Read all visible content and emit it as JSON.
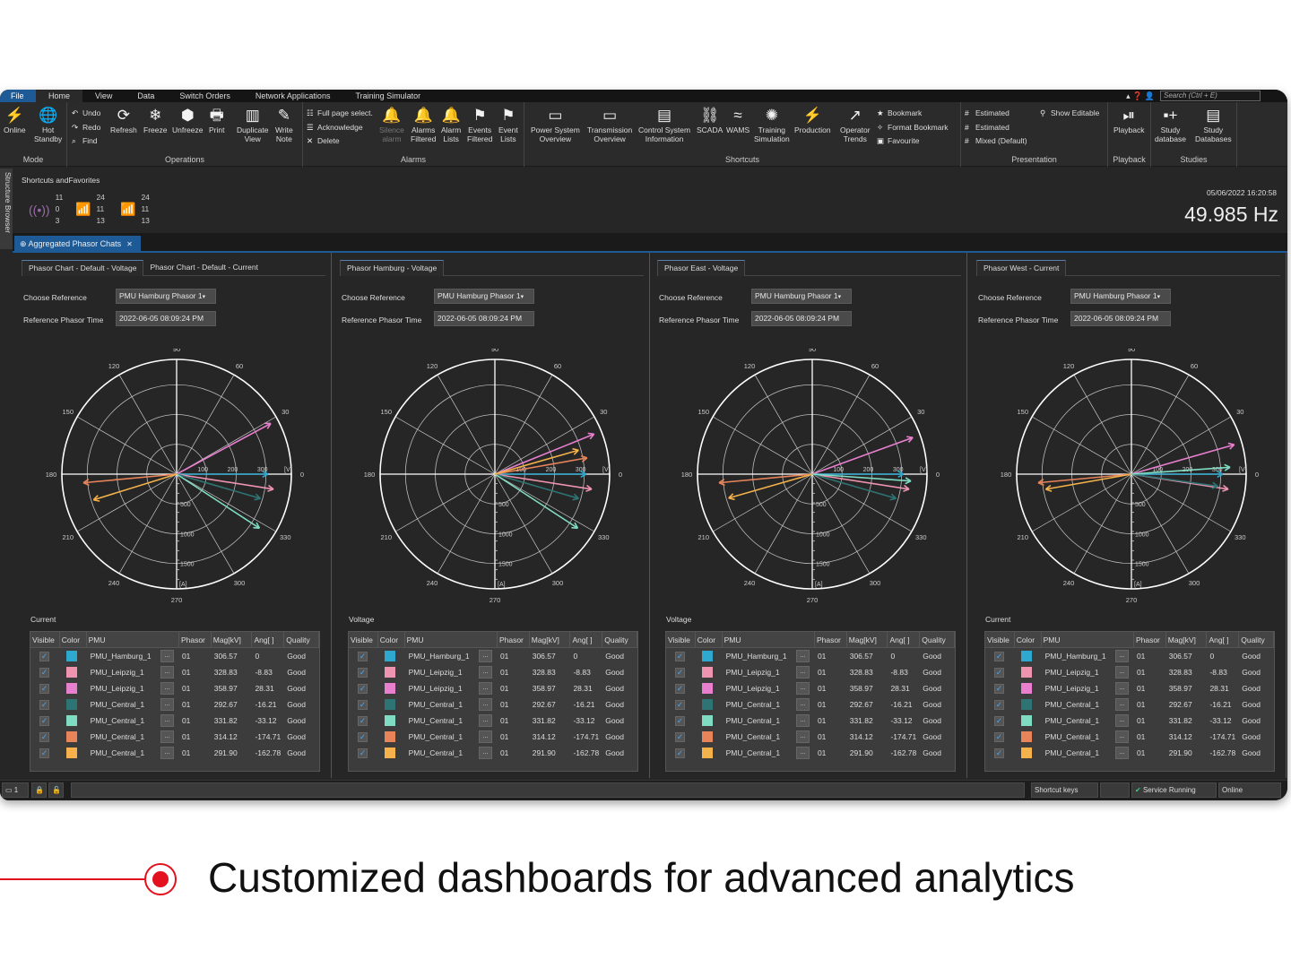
{
  "menu": {
    "tabs": [
      "File",
      "Home",
      "View",
      "Data",
      "Switch Orders",
      "Network Applications",
      "Training Simulator"
    ],
    "search_placeholder": "Search (Ctrl + E)"
  },
  "ribbon": {
    "groups": [
      "Mode",
      "Operations",
      "Alarms",
      "Shortcuts",
      "Presentation",
      "Playback",
      "Studies"
    ],
    "mode": [
      [
        "Online",
        ""
      ],
      [
        "Hot",
        "Standby"
      ]
    ],
    "ops_stack": [
      "Undo",
      "Redo",
      "Find"
    ],
    "ops": [
      [
        "Refresh",
        ""
      ],
      [
        "Freeze",
        ""
      ],
      [
        "Unfreeze",
        ""
      ],
      [
        "Print",
        ""
      ],
      [
        "Duplicate",
        "View"
      ],
      [
        "Write",
        "Note"
      ]
    ],
    "alarm_stack": [
      "Full page select.",
      "Acknowledge",
      "Delete"
    ],
    "alarms": [
      [
        "Silence",
        "alarm"
      ],
      [
        "Alarms",
        "Filtered"
      ],
      [
        "Alarm",
        "Lists"
      ],
      [
        "Events",
        "Filtered"
      ],
      [
        "Event",
        "Lists"
      ]
    ],
    "shortcuts": [
      [
        "Power System",
        "Overview"
      ],
      [
        "Transmission",
        "Overview"
      ],
      [
        "Control System",
        "Information"
      ],
      [
        "SCADA",
        ""
      ],
      [
        "WAMS",
        ""
      ],
      [
        "Training",
        "Simulation"
      ],
      [
        "Production",
        ""
      ],
      [
        "Operator",
        "Trends"
      ]
    ],
    "bookmark_stack": [
      "Bookmark",
      "Format Bookmark",
      "Favourite"
    ],
    "presentation_stack": [
      "Estimated",
      "Estimated",
      "Mixed (Default)"
    ],
    "show_editable": "Show Editable",
    "playback": "Playback",
    "studies": [
      [
        "Study",
        "database"
      ],
      [
        "Study",
        "Databases"
      ]
    ]
  },
  "structure_browser": "Structure Browser",
  "favorites": {
    "title": "Shortcuts andFavorites",
    "groups": [
      [
        "11",
        "0",
        "3"
      ],
      [
        "24",
        "11",
        "13"
      ],
      [
        "24",
        "11",
        "13"
      ]
    ],
    "datetime": "05/06/2022 16:20:58",
    "frequency": "49.985 Hz"
  },
  "doc_tab": "Aggregated Phasor Chats",
  "labels": {
    "choose_reference": "Choose Reference",
    "reference_time": "Reference Phasor Time",
    "reference_value": "PMU  Hamburg Phasor 1",
    "time_value": "2022-06-05 08:09:24 PM"
  },
  "panels": [
    {
      "tabs": [
        "Phasor Chart - Default - Voltage",
        "Phasor Chart - Default - Current"
      ],
      "section": "Current"
    },
    {
      "tabs": [
        "Phasor Hamburg - Voltage"
      ],
      "section": "Voltage"
    },
    {
      "tabs": [
        "Phasor East - Voltage"
      ],
      "section": "Voltage"
    },
    {
      "tabs": [
        "Phasor West - Current"
      ],
      "section": "Current"
    }
  ],
  "table": {
    "headers": [
      "Visible",
      "Color",
      "PMU",
      "Phasor",
      "Mag[kV]",
      "Ang[ ]",
      "Quality"
    ],
    "rows": [
      {
        "pmu": "PMU_Hamburg_1",
        "phasor": "01",
        "mag": "306.57",
        "ang": "0",
        "quality": "Good",
        "color": "#2fa8d0",
        "visible": true
      },
      {
        "pmu": "PMU_Leipzig_1",
        "phasor": "01",
        "mag": "328.83",
        "ang": "-8.83",
        "quality": "Good",
        "color": "#ee93b0",
        "visible": true
      },
      {
        "pmu": "PMU_Leipzig_1",
        "phasor": "01",
        "mag": "358.97",
        "ang": "28.31",
        "quality": "Good",
        "color": "#e87fcf",
        "visible": true
      },
      {
        "pmu": "PMU_Central_1",
        "phasor": "01",
        "mag": "292.67",
        "ang": "-16.21",
        "quality": "Good",
        "color": "#2f7474",
        "visible": true
      },
      {
        "pmu": "PMU_Central_1",
        "phasor": "01",
        "mag": "331.82",
        "ang": "-33.12",
        "quality": "Good",
        "color": "#7fdcc3",
        "visible": true
      },
      {
        "pmu": "PMU_Central_1",
        "phasor": "01",
        "mag": "314.12",
        "ang": "-174.71",
        "quality": "Good",
        "color": "#e8845a",
        "visible": true
      },
      {
        "pmu": "PMU_Central_1",
        "phasor": "01",
        "mag": "291.90",
        "ang": "-162.78",
        "quality": "Good",
        "color": "#f5b24a",
        "visible": true
      }
    ],
    "dots": "..."
  },
  "chart_data": [
    {
      "type": "polar",
      "angle_ticks": [
        "0",
        "30",
        "60",
        "90",
        "120",
        "150",
        "180",
        "210",
        "240",
        "270",
        "300",
        "330"
      ],
      "voltage_ticks": [
        "100",
        "200",
        "300"
      ],
      "voltage_unit": "[V]",
      "current_ticks": [
        "500",
        "1000",
        "1500"
      ],
      "current_unit": "[A]",
      "rmax": 385,
      "phasors": [
        [
          306.57,
          0
        ],
        [
          328.83,
          -8.83
        ],
        [
          358.97,
          28.31
        ],
        [
          292.67,
          -16.21
        ],
        [
          331.82,
          -33.12
        ],
        [
          314.12,
          -174.71
        ],
        [
          291.9,
          -162.78
        ]
      ]
    },
    {
      "type": "polar",
      "angle_ticks": [
        "0",
        "30",
        "60",
        "90",
        "120",
        "150",
        "180",
        "210",
        "240",
        "270",
        "300",
        "330"
      ],
      "voltage_ticks": [
        "100",
        "200",
        "300"
      ],
      "voltage_unit": "[V]",
      "current_ticks": [
        "500",
        "1000",
        "1500"
      ],
      "current_unit": "[A]",
      "rmax": 385,
      "phasors": [
        [
          306.57,
          0
        ],
        [
          328.83,
          -8.83
        ],
        [
          358.97,
          22
        ],
        [
          292.67,
          -16.21
        ],
        [
          331.82,
          -33.12
        ],
        [
          314.12,
          10
        ],
        [
          291.9,
          16
        ]
      ]
    },
    {
      "type": "polar",
      "angle_ticks": [
        "0",
        "30",
        "60",
        "90",
        "120",
        "150",
        "180",
        "210",
        "240",
        "270",
        "300",
        "330"
      ],
      "voltage_ticks": [
        "100",
        "200",
        "300"
      ],
      "voltage_unit": "[V]",
      "current_ticks": [
        "500",
        "1000",
        "1500"
      ],
      "current_unit": "[A]",
      "rmax": 385,
      "phasors": [
        [
          306.57,
          0
        ],
        [
          328.83,
          -8.83
        ],
        [
          358.97,
          20
        ],
        [
          292.67,
          -16.21
        ],
        [
          331.82,
          -4
        ],
        [
          314.12,
          -174.71
        ],
        [
          291.9,
          -164
        ]
      ]
    },
    {
      "type": "polar",
      "angle_ticks": [
        "0",
        "30",
        "60",
        "90",
        "120",
        "150",
        "180",
        "210",
        "240",
        "270",
        "300",
        "330"
      ],
      "voltage_ticks": [
        "100",
        "200",
        "300"
      ],
      "voltage_unit": "[V]",
      "current_ticks": [
        "500",
        "1000",
        "1500"
      ],
      "current_unit": "[A]",
      "rmax": 385,
      "phasors": [
        [
          306.57,
          0
        ],
        [
          328.83,
          -8.83
        ],
        [
          358.97,
          16
        ],
        [
          292.67,
          -8
        ],
        [
          331.82,
          4
        ],
        [
          314.12,
          -174.71
        ],
        [
          291.9,
          -170
        ]
      ]
    }
  ],
  "status": {
    "count": "1",
    "shortcut_keys": "Shortcut keys",
    "service": "Service Running",
    "online": "Online"
  },
  "caption": "Customized dashboards for advanced analytics",
  "colors": {
    "accent": "#1d5a96",
    "caption_red": "#e3101e",
    "background": "#262626"
  }
}
